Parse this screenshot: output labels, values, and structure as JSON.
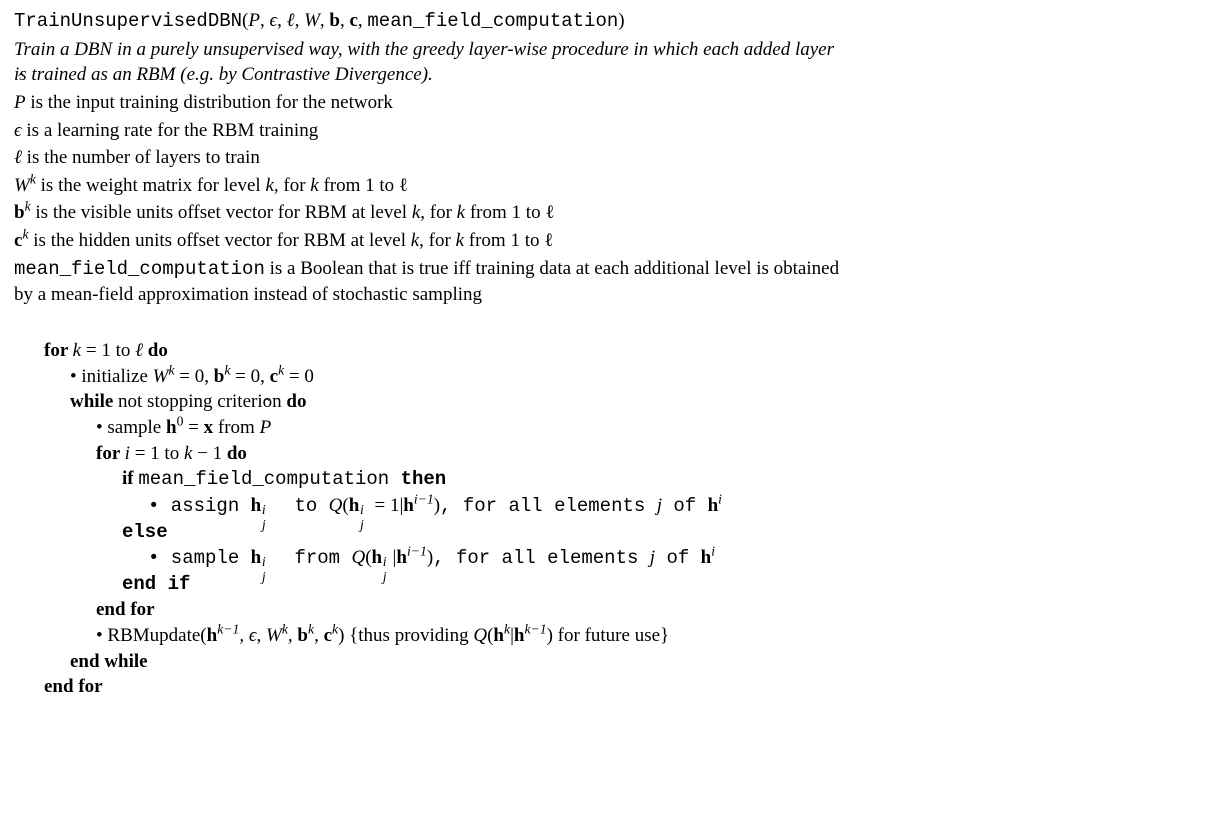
{
  "header": {
    "fn_name": "TrainUnsupervisedDBN",
    "args": "(P̂, ϵ, ℓ, W, b, c, ",
    "args_tt_tail": "mean_field_computation",
    "args_close": ")"
  },
  "caption": {
    "line1": "Train a DBN in a purely unsupervised way, with the greedy layer-wise procedure in which each added layer",
    "line2": "is trained as an RBM (e.g. by Contrastive Divergence)."
  },
  "params": {
    "phat_text": " is the input training distribution for the network",
    "eps": "ϵ is a learning rate for the RBM training",
    "ell": "ℓ is the number of layers to train",
    "W_pre": "W",
    "W_sup": "k",
    "W_text": " is the weight matrix for level ",
    "W_text2": "k",
    "W_text3": ", for ",
    "W_text4": "k",
    "W_text5": " from 1 to ℓ",
    "b_text": " is the visible units offset vector for RBM at level ",
    "c_text": " is the hidden units offset vector for RBM at level ",
    "mfc_label": "mean_field_computation",
    "mfc_text1": " is a Boolean that is true iff training data at each additional level is obtained",
    "mfc_text2": "by a mean-field approximation instead of stochastic sampling"
  },
  "pseudo": {
    "for_k_pre": "for ",
    "for_k_mid": "k = 1 to ℓ ",
    "do": "do",
    "init_bullet": "• initialize ",
    "init_expr": "W^k = 0, b^k = 0, c^k = 0",
    "while_pre": "while",
    "while_mid": " not stopping criterion ",
    "sample_h0_pre": "• sample ",
    "sample_h0_expr": "h^0 = x",
    "sample_h0_post": " from ",
    "for_i_pre": "for ",
    "for_i_mid": "i = 1 to k − 1 ",
    "if_pre": "if ",
    "if_mid": "mean_field_computation",
    "then": " then",
    "assign_pre": "• assign ",
    "assign_to": " to ",
    "assign_post": ", for all elements ",
    "assign_of": " of ",
    "else": "else",
    "sample_pre": "• sample ",
    "sample_from": " from ",
    "endif": "end if",
    "endfor_inner": "end for",
    "rbm_pre": "• RBMupdate(",
    "rbm_args": "h^{k−1}, ϵ, W^k, b^k, c^k",
    "rbm_post": ") {thus providing ",
    "rbm_q": "Q(h^k|h^{k−1})",
    "rbm_tail": " for future use}",
    "endwhile": "end while",
    "endfor_outer": "end for"
  }
}
